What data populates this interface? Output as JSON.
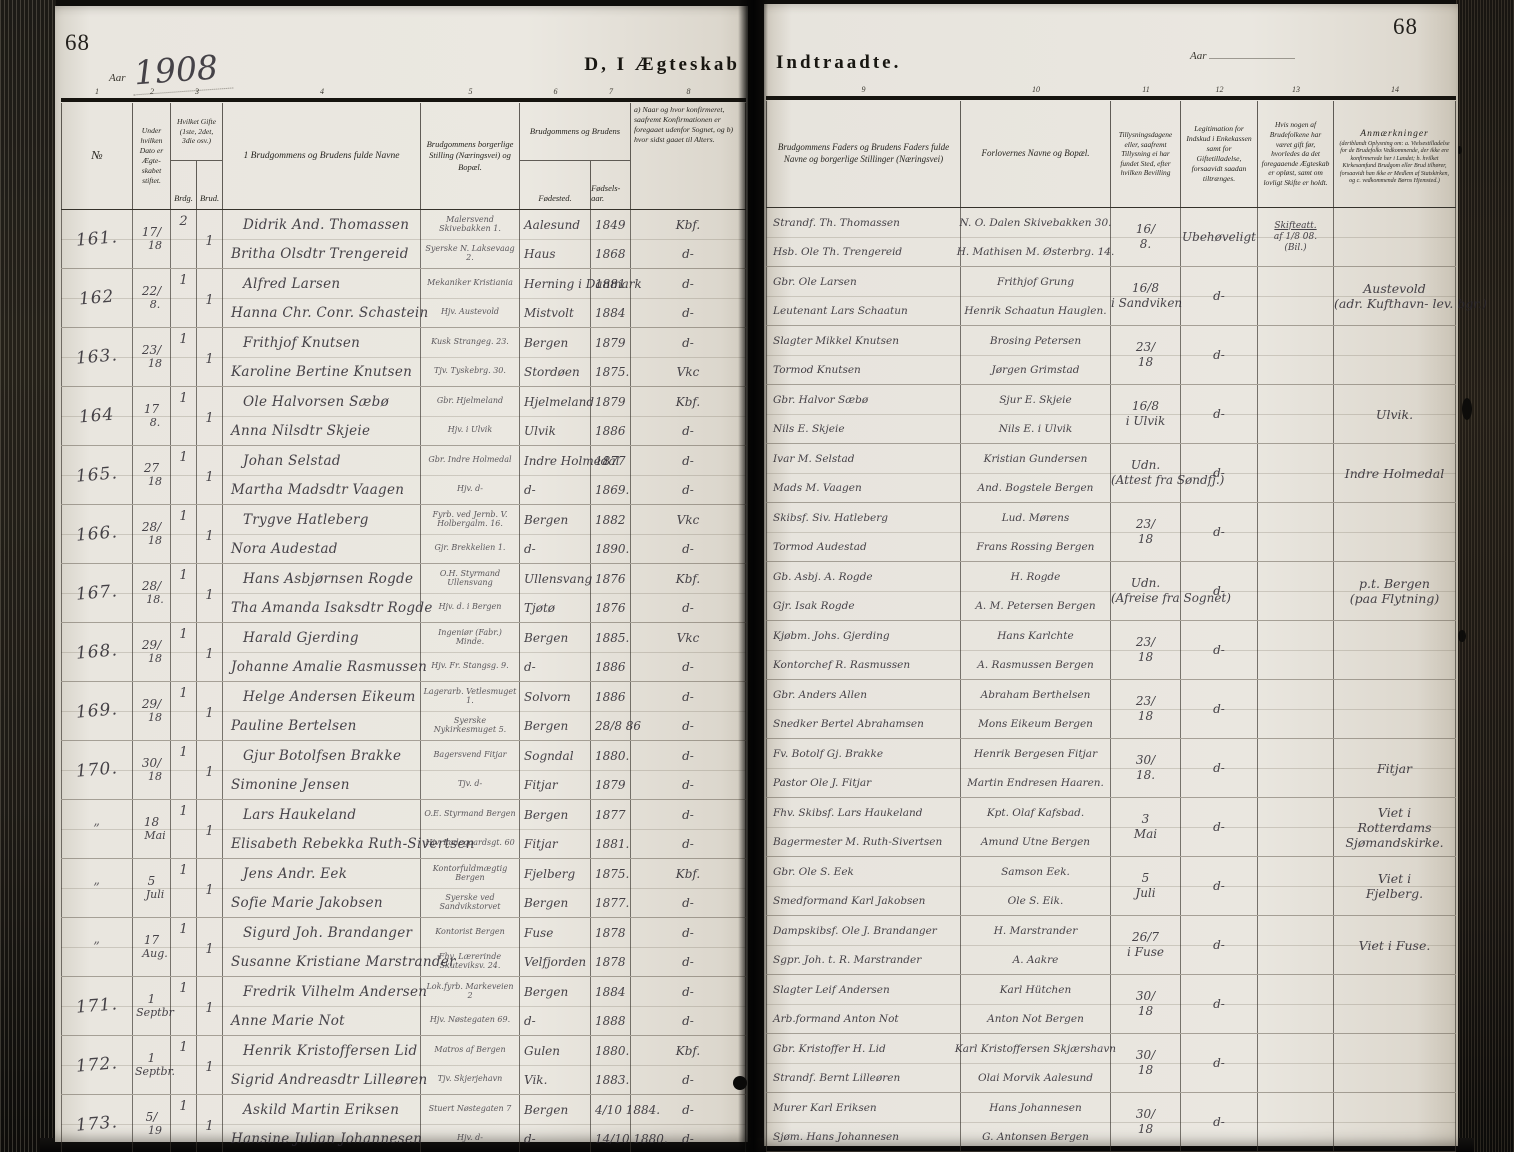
{
  "book": {
    "left_page_number": "68",
    "right_page_number": "68",
    "aar_label": "Aar",
    "aar_value": "1908",
    "title_left": "D,  I Ægteskab",
    "title_right": "Indtraadte.",
    "aar_label_right": "Aar"
  },
  "colnums_left": [
    "1",
    "2",
    "3",
    "4",
    "5",
    "6",
    "7",
    "8"
  ],
  "colnums_right": [
    "9",
    "10",
    "11",
    "12",
    "13",
    "14"
  ],
  "headers": {
    "no": "№",
    "dato": "Under hvilken Dato er Ægte­skabet stiftet.",
    "gifte": "Hvilket Gifte (1ste, 2det, 3die osv.)",
    "brdg": "Brdg.",
    "brud": "Brud.",
    "navne": "1  Brudgommens og Brudens fulde Navne",
    "stilling": "Brudgommens borgerlige Stilling (Næringsvei) og Bopæl.",
    "bruden": "Brudgommens og Brudens",
    "fodested": "Fødested.",
    "fodselsaar": "Fødsels­aar.",
    "k8": "a) Naar og hvor konfirmeret, saafremt Konfirmationen er foregaaet udenfor Sognet, og  b) hvor sidst gaaet til Alters.",
    "fedre": "Brudgommens Faders og Brudens Faders fulde Navne og borgerlige Stillinger (Næringsvei)",
    "forlovere": "Forlovernes Navne og Bopæl.",
    "tillysning": "Tillysningsdagene eller, saafremt Tillysning ei har fundet Sted, efter hvilken Bevilling",
    "legitimation": "Legitimation for Indskud i Enke­kassen samt for Giftetilladelse, forsaavidt saadan tiltrænges.",
    "skifte": "Hvis nogen af Brudefolkene har været gift før, hvorledes da det foregaaende Ægte­skab er opløst, samt om lovligt Skifte er holdt.",
    "anm": "Anmærkninger",
    "anm_small": "(deriblandt Oplysning om: a. Vielsestilladelse for de Brudefolks Vedkommende, der ikke ere konfirmerede her i Landet; b. hvilket Kirkesamfund Brudgom eller Brud tilhører, forsaavidt han ikke er Medlem af Statskirken, og c. vedkommende Børns Hjemsted.)"
  },
  "records": [
    {
      "no": "161.",
      "d": [
        "17/",
        "18"
      ],
      "g1": "2",
      "g2": "1",
      "groom": "Didrik And. Thomassen",
      "bride": "Britha Olsdtr Trengereid",
      "sg": "Malersvend Skivebakken 1.",
      "sb": "Syerske N. Laksevaag 2.",
      "fg": "Aalesund",
      "fb": "Haus",
      "ag": "1849",
      "ab": "1868",
      "kg": "Kbf.",
      "kb": "d-",
      "farg": "Strandf. Th. Thomassen",
      "farb": "Hsb. Ole Th. Trengereid",
      "fog": "N. O. Dalen Skivebakken 30.",
      "fob": "H. Mathisen M. Østerbrg. 14.",
      "till": [
        "16/",
        "8."
      ],
      "legit": "Ubehøveligt",
      "skifte": [
        "Skifteatt.",
        "af 1/8 08.",
        "(Bil.)"
      ],
      "anm": []
    },
    {
      "no": "162",
      "d": [
        "22/",
        "8."
      ],
      "g1": "1",
      "g2": "1",
      "groom": "Alfred Larsen",
      "bride": "Hanna Chr. Conr. Schastein",
      "sg": "Mekaniker Kristiania",
      "sb": "Hjv. Austevold",
      "fg": "Herning i Danmark",
      "fb": "Mistvolt",
      "ag": "1881",
      "ab": "1884",
      "kg": "d-",
      "kb": "d-",
      "farg": "Gbr. Ole Larsen",
      "farb": "Leutenant Lars Schaatun",
      "fog": "Frithjof Grung",
      "fob": "Henrik Schaatun Hauglen.",
      "till": [
        "16/8",
        "i Sandviken"
      ],
      "legit": "d-",
      "skifte": [],
      "anm": [
        "Austevold",
        "(adr. Kufthavn- lev. bgr.)"
      ]
    },
    {
      "no": "163.",
      "d": [
        "23/",
        "18"
      ],
      "g1": "1",
      "g2": "1",
      "groom": "Frithjof Knutsen",
      "bride": "Karoline Bertine Knutsen",
      "sg": "Kusk Strangeg. 23.",
      "sb": "Tjv. Tyskebrg. 30.",
      "fg": "Bergen",
      "fb": "Stordøen",
      "ag": "1879",
      "ab": "1875.",
      "kg": "d-",
      "kb": "Vkc",
      "farg": "Slagter Mikkel Knutsen",
      "farb": "Tormod Knutsen",
      "fog": "Brosing Petersen",
      "fob": "Jørgen Grimstad",
      "till": [
        "23/",
        "18"
      ],
      "legit": "d-",
      "skifte": [],
      "anm": []
    },
    {
      "no": "164",
      "d": [
        "17",
        "8."
      ],
      "g1": "1",
      "g2": "1",
      "groom": "Ole Halvorsen Sæbø",
      "bride": "Anna Nilsdtr Skjeie",
      "sg": "Gbr. Hjelmeland",
      "sb": "Hjv. i Ulvik",
      "fg": "Hjelmeland",
      "fb": "Ulvik",
      "ag": "1879",
      "ab": "1886",
      "kg": "Kbf.",
      "kb": "d-",
      "farg": "Gbr. Halvor Sæbø",
      "farb": "Nils E. Skjeie",
      "fog": "Sjur E. Skjeie",
      "fob": "Nils E. i Ulvik",
      "till": [
        "16/8",
        "i Ulvik"
      ],
      "legit": "d-",
      "skifte": [],
      "anm": [
        "Ulvik."
      ]
    },
    {
      "no": "165.",
      "d": [
        "27",
        "18"
      ],
      "g1": "1",
      "g2": "1",
      "groom": "Johan Selstad",
      "bride": "Martha Madsdtr Vaagen",
      "sg": "Gbr. Indre Holmedal",
      "sb": "Hjv. d-",
      "fg": "Indre Holmedal",
      "fb": "d-",
      "ag": "1877",
      "ab": "1869.",
      "kg": "d-",
      "kb": "d-",
      "farg": "Ivar M. Selstad",
      "farb": "Mads M. Vaagen",
      "fog": "Kristian Gundersen",
      "fob": "And. Bogstele Bergen",
      "till": [
        "Udn.",
        "(Attest fra Søndfj.)"
      ],
      "legit": "d-",
      "skifte": [],
      "anm": [
        "Indre Holmedal"
      ]
    },
    {
      "no": "166.",
      "d": [
        "28/",
        "18"
      ],
      "g1": "1",
      "g2": "1",
      "groom": "Trygve Hatleberg",
      "bride": "Nora Audestad",
      "sg": "Fyrb. ved Jernb. V. Holbergalm. 16.",
      "sb": "Gjr. Brekkelien 1.",
      "fg": "Bergen",
      "fb": "d-",
      "ag": "1882",
      "ab": "1890.",
      "kg": "Vkc",
      "kb": "d-",
      "farg": "Skibsf. Siv. Hatleberg",
      "farb": "Tormod Audestad",
      "fog": "Lud. Mørens",
      "fob": "Frans Rossing Bergen",
      "till": [
        "23/",
        "18"
      ],
      "legit": "d-",
      "skifte": [],
      "anm": []
    },
    {
      "no": "167.",
      "d": [
        "28/",
        "18."
      ],
      "g1": "1",
      "g2": "1",
      "groom": "Hans Asbjørnsen Rogde",
      "bride": "Tha Amanda Isaksdtr Rogde",
      "sg": "O.H. Styrmand Ullensvang",
      "sb": "Hjv. d. i Bergen",
      "fg": "Ullensvang",
      "fb": "Tjøtø",
      "ag": "1876",
      "ab": "1876",
      "kg": "Kbf.",
      "kb": "d-",
      "farg": "Gb. Asbj. A. Rogde",
      "farb": "Gjr. Isak Rogde",
      "fog": "H. Rogde",
      "fob": "A. M. Petersen Bergen",
      "till": [
        "Udn.",
        "(Afreise fra Sognet)"
      ],
      "legit": "d-",
      "skifte": [],
      "anm": [
        "p.t. Bergen",
        "(paa Flytning)"
      ]
    },
    {
      "no": "168.",
      "d": [
        "29/",
        "18"
      ],
      "g1": "1",
      "g2": "1",
      "groom": "Harald Gjerding",
      "bride": "Johanne Amalie Rasmussen",
      "sg": "Ingeniør (Fabr.) Minde.",
      "sb": "Hjv. Fr. Stangsg. 9.",
      "fg": "Bergen",
      "fb": "d-",
      "ag": "1885.",
      "ab": "1886",
      "kg": "Vkc",
      "kb": "d-",
      "farg": "Kjøbm. Johs. Gjerding",
      "farb": "Kontorchef R. Rasmussen",
      "fog": "Hans Karlchte",
      "fob": "A. Rasmussen Bergen",
      "till": [
        "23/",
        "18"
      ],
      "legit": "d-",
      "skifte": [],
      "anm": []
    },
    {
      "no": "169.",
      "d": [
        "29/",
        "18"
      ],
      "g1": "1",
      "g2": "1",
      "groom": "Helge Andersen Eikeum",
      "bride": "Pauline Bertelsen",
      "sg": "Lagerarb. Vetlesmuget 1.",
      "sb": "Syerske Nykirkesmuget 5.",
      "fg": "Solvorn",
      "fb": "Bergen",
      "ag": "1886",
      "ab": "28/8 86",
      "kg": "d-",
      "kb": "d-",
      "farg": "Gbr. Anders Allen",
      "farb": "Snedker Bertel Abrahamsen",
      "fog": "Abraham Berthelsen",
      "fob": "Mons Eikeum Bergen",
      "till": [
        "23/",
        "18"
      ],
      "legit": "d-",
      "skifte": [],
      "anm": []
    },
    {
      "no": "170.",
      "d": [
        "30/",
        "18"
      ],
      "g1": "1",
      "g2": "1",
      "groom": "Gjur Botolfsen Brakke",
      "bride": "Simonine Jensen",
      "sg": "Bagersvend Fitjar",
      "sb": "Tjv. d-",
      "fg": "Sogndal",
      "fb": "Fitjar",
      "ag": "1880.",
      "ab": "1879",
      "kg": "d-",
      "kb": "d-",
      "farg": "Fv. Botolf Gj. Brakke",
      "farb": "Pastor Ole J. Fitjar",
      "fog": "Henrik Bergesen Fitjar",
      "fob": "Martin Endresen Haaren.",
      "till": [
        "30/",
        "18."
      ],
      "legit": "d-",
      "skifte": [],
      "anm": [
        "Fitjar"
      ]
    },
    {
      "no": "”",
      "d": [
        "18",
        "Mai"
      ],
      "g1": "1",
      "g2": "1",
      "groom": "Lars Haukeland",
      "bride": "Elisabeth Rebekka Ruth-Sivertsen",
      "sg": "O.E. Styrmand Bergen",
      "sb": "Hjv. Ladegaardsgt. 60",
      "fg": "Bergen",
      "fb": "Fitjar",
      "ag": "1877",
      "ab": "1881.",
      "kg": "d-",
      "kb": "d-",
      "farg": "Fhv. Skibsf. Lars Haukeland",
      "farb": "Bagermester M. Ruth-Sivertsen",
      "fog": "Kpt. Olaf Kafsbad.",
      "fob": "Amund Utne Bergen",
      "till": [
        "3",
        "Mai"
      ],
      "legit": "d-",
      "skifte": [],
      "anm": [
        "Viet i",
        "Rotterdams",
        "Sjømandskirke."
      ]
    },
    {
      "no": "”",
      "d": [
        "5",
        "Juli"
      ],
      "g1": "1",
      "g2": "1",
      "groom": "Jens Andr. Eek",
      "bride": "Sofie Marie Jakobsen",
      "sg": "Kontorfuldmægtig Bergen",
      "sb": "Syerske ved Sandvikstorvet",
      "fg": "Fjelberg",
      "fb": "Bergen",
      "ag": "1875.",
      "ab": "1877.",
      "kg": "Kbf.",
      "kb": "d-",
      "farg": "Gbr. Ole S. Eek",
      "farb": "Smedformand Karl Jakobsen",
      "fog": "Samson Eek.",
      "fob": "Ole S. Eik.",
      "till": [
        "5",
        "Juli"
      ],
      "legit": "d-",
      "skifte": [],
      "anm": [
        "Viet i",
        "Fjelberg."
      ]
    },
    {
      "no": "”",
      "d": [
        "17",
        "Aug."
      ],
      "g1": "1",
      "g2": "1",
      "groom": "Sigurd Joh. Brandanger",
      "bride": "Susanne Kristiane Marstrander",
      "sg": "Kontorist Bergen",
      "sb": "Fhv. Lærerinde Skuteviksv. 24.",
      "fg": "Fuse",
      "fb": "Velfjorden",
      "ag": "1878",
      "ab": "1878",
      "kg": "d-",
      "kb": "d-",
      "farg": "Dampskibsf. Ole J. Brandanger",
      "farb": "Sgpr. Joh. t. R. Marstrander",
      "fog": "H. Marstrander",
      "fob": "A. Aakre",
      "till": [
        "26/7",
        "i Fuse"
      ],
      "legit": "d-",
      "skifte": [],
      "anm": [
        "Viet i Fuse."
      ]
    },
    {
      "no": "171.",
      "d": [
        "1",
        "Septbr"
      ],
      "g1": "1",
      "g2": "1",
      "groom": "Fredrik Vilhelm Andersen",
      "bride": "Anne Marie Not",
      "sg": "Lok.fyrb. Markeveien 2",
      "sb": "Hjv. Nøstegaten 69.",
      "fg": "Bergen",
      "fb": "d-",
      "ag": "1884",
      "ab": "1888",
      "kg": "d-",
      "kb": "d-",
      "farg": "Slagter Leif Andersen",
      "farb": "Arb.formand Anton Not",
      "fog": "Karl Hütchen",
      "fob": "Anton Not Bergen",
      "till": [
        "30/",
        "18"
      ],
      "legit": "d-",
      "skifte": [],
      "anm": []
    },
    {
      "no": "172.",
      "d": [
        "1",
        "Septbr."
      ],
      "g1": "1",
      "g2": "1",
      "groom": "Henrik Kristoffersen Lid",
      "bride": "Sigrid Andreasdtr Lilleøren",
      "sg": "Matros af Bergen",
      "sb": "Tjv. Skjerjehavn",
      "fg": "Gulen",
      "fb": "Vik.",
      "ag": "1880.",
      "ab": "1883.",
      "kg": "Kbf.",
      "kb": "d-",
      "farg": "Gbr. Kristoffer H. Lid",
      "farb": "Strandf. Bernt Lilleøren",
      "fog": "Karl Kristoffersen Skjærshavn",
      "fob": "Olai Morvik Aalesund",
      "till": [
        "30/",
        "18"
      ],
      "legit": "d-",
      "skifte": [],
      "anm": []
    },
    {
      "no": "173.",
      "d": [
        "5/",
        "19"
      ],
      "g1": "1",
      "g2": "1",
      "groom": "Askild Martin Eriksen",
      "bride": "Hansine Julian Johannesen",
      "sg": "Stuert Nøstegaten 7",
      "sb": "Hjv. d-",
      "fg": "Bergen",
      "fb": "d-",
      "ag": "4/10 1884.",
      "ab": "14/10 1880.",
      "kg": "d-",
      "kb": "d-",
      "farg": "Murer Karl Eriksen",
      "farb": "Sjøm. Hans Johannesen",
      "fog": "Hans Johannesen",
      "fob": "G. Antonsen Bergen",
      "till": [
        "30/",
        "18"
      ],
      "legit": "d-",
      "skifte": [],
      "anm": []
    }
  ]
}
